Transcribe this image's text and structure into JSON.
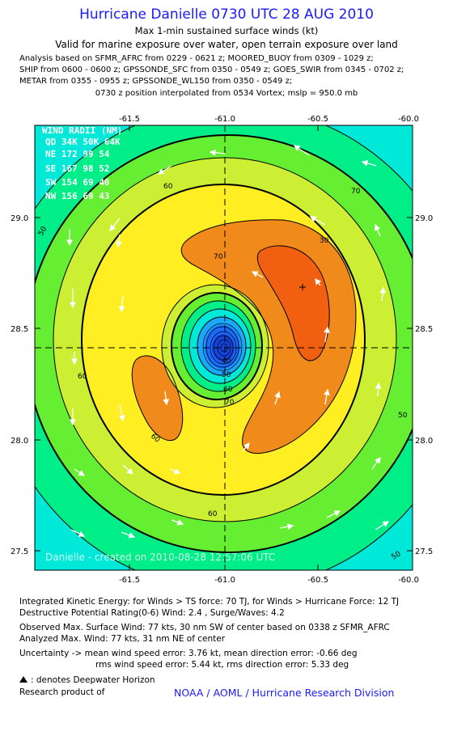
{
  "title": "Hurricane Danielle 0730 UTC 28 AUG 2010",
  "subtitle_1": "Max 1-min sustained surface winds (kt)",
  "subtitle_2": "Valid for marine exposure over water, open terrain exposure over land",
  "analysis_lines": [
    "Analysis based on SFMR_AFRC from 0229 - 0621 z; MOORED_BUOY from 0309 - 1029 z;",
    "SHIP from 0600 - 0600 z; GPSSONDE_SFC from 0350 - 0549 z; GOES_SWIR from 0345 - 0702 z;",
    "METAR from 0355 - 0955 z; GPSSONDE_WL150 from 0350 - 0549 z;"
  ],
  "position_line": "0730 z position interpolated from 0534 Vortex; mslp = 950.0 mb",
  "map": {
    "lon_ticks": [
      "-61.5",
      "-61.0",
      "-60.5",
      "-60.0"
    ],
    "lat_ticks": [
      "29.0",
      "28.5",
      "28.0",
      "27.5"
    ],
    "lon_range": [
      -62.0,
      -60.0
    ],
    "lat_range": [
      27.4,
      29.4
    ],
    "center": {
      "lon": -61.0,
      "lat": 28.4
    },
    "max_wind_marker": {
      "lon": -60.5,
      "lat": 28.7
    },
    "contour_labels": [
      "60",
      "70",
      "50",
      "60",
      "70",
      "30",
      "40",
      "50",
      "60",
      "70",
      "60",
      "60",
      "50",
      "50"
    ],
    "watermark": "Danielle - created on 2010-08-28 12:57:06 UTC",
    "wind_radii": {
      "header": "WIND RADII (NM)",
      "columns": "QD 34K 50K 64K",
      "rows": [
        "NE  172  99  54",
        "SE  167  98  52",
        "SW  154  69  40",
        "NW  156  69  43"
      ]
    },
    "colors": {
      "cyan": "#00e8d8",
      "green": "#00ee88",
      "lime": "#66ee33",
      "yellow_green": "#ccee33",
      "yellow": "#ffee22",
      "orange": "#f08a1a",
      "dark_orange": "#f06010",
      "blue": "#1a6cff"
    }
  },
  "footer": {
    "ike": "Integrated Kinetic Energy:  for Winds > TS force: 70 TJ,  for Winds > Hurricane Force: 12 TJ",
    "dpr": "Destructive Potential Rating(0-6)   Wind: 2.4 , Surge/Waves: 4.2",
    "observed": "Observed Max. Surface Wind: 77 kts, 30 nm SW of center based on 0338 z SFMR_AFRC",
    "analyzed": "Analyzed Max. Wind: 77 kts, 31 nm NE of center",
    "uncertainty_1": "Uncertainty -> mean wind speed error: 3.76 kt,   mean direction error:  -0.66 deg",
    "uncertainty_2": "rms wind speed error: 5.44 kt,   rms direction error: 5.33 deg",
    "dwh_legend": ": denotes Deepwater Horizon",
    "research_label": "Research product of",
    "org": "NOAA / AOML / Hurricane Research Division"
  }
}
